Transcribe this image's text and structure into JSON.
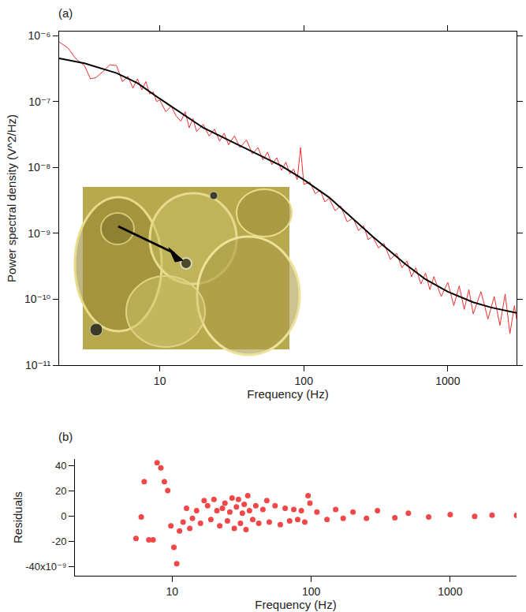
{
  "chart_data": [
    {
      "type": "line",
      "annotations": [
        "(a)"
      ],
      "x_label": "Frequency (Hz)",
      "y_label": "Power spectral density (V^2/Hz)",
      "log": true,
      "grid": false,
      "xlim": [
        2,
        3000
      ],
      "ylim": [
        1e-11,
        1.15e-06
      ],
      "xticks": [
        10,
        100,
        1000
      ],
      "yticks": [
        {
          "value": 1e-11,
          "label": "10⁻¹¹"
        },
        {
          "value": 1e-10,
          "label": "10⁻¹⁰"
        },
        {
          "value": 1e-09,
          "label": "10⁻⁹"
        },
        {
          "value": 1e-08,
          "label": "10⁻⁸"
        },
        {
          "value": 1e-07,
          "label": "10⁻⁷"
        },
        {
          "value": 1e-06,
          "label": "10⁻⁶"
        }
      ],
      "series": [
        {
          "color": "#f03030",
          "x": [
            2,
            2.3,
            2.6,
            3,
            3.3,
            3.6,
            4,
            4.5,
            5,
            5.5,
            6,
            6.5,
            7,
            7.5,
            8,
            8.5,
            9,
            9.5,
            10,
            11,
            12,
            13,
            14,
            15,
            16,
            17,
            18,
            20,
            22,
            24,
            26,
            28,
            30,
            33,
            36,
            40,
            44,
            48,
            52,
            56,
            60,
            65,
            70,
            75,
            80,
            85,
            90,
            95,
            100,
            110,
            120,
            130,
            140,
            150,
            165,
            180,
            200,
            220,
            240,
            260,
            280,
            300,
            330,
            360,
            400,
            440,
            480,
            520,
            560,
            600,
            650,
            700,
            750,
            800,
            900,
            1000,
            1100,
            1200,
            1300,
            1400,
            1500,
            1700,
            1900,
            2100,
            2300,
            2500,
            2700,
            2900,
            3000
          ],
          "values": [
            8e-07,
            6.5e-07,
            4.5e-07,
            3.5e-07,
            2.2e-07,
            2.3e-07,
            2.8e-07,
            3.6e-07,
            3.5e-07,
            2e-07,
            2.4e-07,
            1.6e-07,
            2.2e-07,
            1.5e-07,
            2e-07,
            1.3e-07,
            1.4e-07,
            1e-07,
            1.05e-07,
            7e-08,
            8.5e-08,
            6e-08,
            5e-08,
            7e-08,
            4e-08,
            5.5e-08,
            3.5e-08,
            4.5e-08,
            3e-08,
            3.8e-08,
            2.5e-08,
            3.3e-08,
            2.2e-08,
            3e-08,
            2e-08,
            2.6e-08,
            1.6e-08,
            2e-08,
            1.3e-08,
            1.7e-08,
            1.1e-08,
            1.4e-08,
            9e-09,
            1.2e-08,
            8e-09,
            9.5e-09,
            6.5e-09,
            2e-08,
            5.5e-09,
            6e-09,
            4e-09,
            4.5e-09,
            3e-09,
            3.4e-09,
            2.2e-09,
            2.6e-09,
            1.5e-09,
            1.7e-09,
            1.1e-09,
            1.3e-09,
            8e-10,
            9e-10,
            6e-10,
            7e-10,
            4e-10,
            5e-10,
            3e-10,
            3.8e-10,
            2.2e-10,
            3e-10,
            1.7e-10,
            2.5e-10,
            1.4e-10,
            2.2e-10,
            1.1e-10,
            1.8e-10,
            8e-11,
            1.6e-10,
            7e-11,
            1.4e-10,
            6e-11,
            1.3e-10,
            5e-11,
            1.1e-10,
            4e-11,
            1.2e-10,
            3e-11,
            8e-11,
            5e-11
          ]
        },
        {
          "color": "#000000",
          "x": [
            2,
            3,
            5,
            7,
            10,
            15,
            20,
            30,
            50,
            70,
            100,
            150,
            200,
            300,
            500,
            700,
            1000,
            1500,
            2000,
            3000
          ],
          "values": [
            4.5e-07,
            3.8e-07,
            2.7e-07,
            1.9e-07,
            1.1e-07,
            6e-08,
            4e-08,
            2.6e-08,
            1.5e-08,
            1.05e-08,
            6.5e-09,
            3.5e-09,
            2e-09,
            9e-10,
            3.5e-10,
            2e-10,
            1.3e-10,
            9e-11,
            7.5e-11,
            6.2e-11
          ]
        }
      ]
    },
    {
      "type": "scatter",
      "annotations": [
        "(b)"
      ],
      "x_label": "Frequency (Hz)",
      "y_label": "Residuals",
      "log": "x",
      "grid": false,
      "marker": "circle",
      "color": "#f04848",
      "xlim": [
        2,
        3000
      ],
      "ylim": [
        -4.75e-08,
        4.5e-08
      ],
      "xticks": [
        10,
        100,
        1000
      ],
      "yticks": [
        {
          "value": -4e-08,
          "label": "-40x10⁻⁹"
        },
        {
          "value": -2e-08,
          "label": "-20"
        },
        {
          "value": 0,
          "label": "0"
        },
        {
          "value": 2e-08,
          "label": "20"
        },
        {
          "value": 4e-08,
          "label": "40"
        }
      ],
      "x": [
        5.5,
        6,
        6.3,
        6.8,
        7.3,
        7.8,
        8.3,
        8.8,
        9.3,
        9.8,
        10.3,
        10.8,
        11.3,
        12,
        12.7,
        13.4,
        14,
        15,
        16,
        17,
        18,
        19,
        20,
        21,
        22,
        23,
        24,
        25,
        26,
        27,
        28,
        29,
        30,
        31,
        32,
        33,
        34,
        35,
        36,
        38,
        40,
        42,
        45,
        48,
        50,
        55,
        60,
        65,
        70,
        75,
        80,
        85,
        90,
        95,
        98,
        110,
        130,
        150,
        170,
        200,
        250,
        300,
        400,
        500,
        700,
        1000,
        1500,
        2000,
        3000
      ],
      "values": [
        -1.8e-08,
        -1e-09,
        2.7e-08,
        -1.9e-08,
        -1.9e-08,
        4.2e-08,
        3.8e-08,
        2.7e-08,
        2e-08,
        -8e-09,
        -2.5e-08,
        -3.8e-08,
        -1.2e-08,
        -5e-09,
        6e-09,
        -1e-08,
        -2e-09,
        4e-09,
        -6e-09,
        1.2e-08,
        8e-09,
        -3e-09,
        1.3e-08,
        4e-09,
        -8e-09,
        6e-09,
        1e-08,
        -4e-09,
        3e-09,
        1.4e-08,
        -1e-08,
        7e-09,
        1.3e-08,
        -6e-09,
        2e-09,
        9e-09,
        -1.1e-08,
        1.6e-08,
        4e-09,
        -3e-09,
        8e-09,
        -6e-09,
        5e-09,
        1.2e-08,
        -5e-09,
        8e-09,
        -7e-09,
        6e-09,
        -4e-09,
        5e-09,
        -3e-09,
        4e-09,
        -5e-09,
        1.6e-08,
        1e-08,
        3e-09,
        -3e-09,
        5e-09,
        -2e-09,
        3e-09,
        -2e-09,
        4e-09,
        -1.5e-09,
        2e-09,
        -1e-09,
        1e-09,
        -5e-10,
        5e-10,
        3e-10
      ]
    }
  ]
}
